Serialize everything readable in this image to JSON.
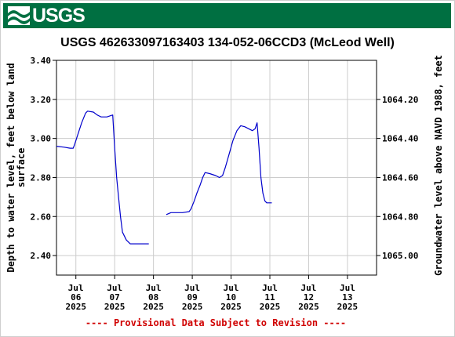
{
  "header": {
    "logo_text": "USGS",
    "logo_icon": "usgs-wave-icon",
    "banner_color": "#006f41"
  },
  "chart_data": {
    "type": "line",
    "title": "USGS 462633097163403 134-052-06CCD3 (McLeod Well)",
    "ylabel_left": "Depth to water level, feet below land surface",
    "ylabel_left_lines": [
      "Depth to water level, feet below land",
      "surface"
    ],
    "ylabel_right": "Groundwater level above NAVD 1988, feet",
    "footnote": "---- Provisional Data Subject to Revision ----",
    "line_color": "#0000cc",
    "footnote_color": "#d00000",
    "grid": true,
    "ylim_left": [
      3.4,
      2.3
    ],
    "ylim_left_inverted": true,
    "right_axis_offset": 1067.4,
    "xlim_days": [
      5.5,
      13.75
    ],
    "x_tick_days": [
      6,
      7,
      8,
      9,
      10,
      11,
      12,
      13
    ],
    "x_tick_labels": [
      [
        "Jul",
        "06",
        "2025"
      ],
      [
        "Jul",
        "07",
        "2025"
      ],
      [
        "Jul",
        "08",
        "2025"
      ],
      [
        "Jul",
        "09",
        "2025"
      ],
      [
        "Jul",
        "10",
        "2025"
      ],
      [
        "Jul",
        "11",
        "2025"
      ],
      [
        "Jul",
        "12",
        "2025"
      ],
      [
        "Jul",
        "13",
        "2025"
      ]
    ],
    "y_ticks_left": [
      {
        "value": 2.4,
        "label": "2.40"
      },
      {
        "value": 2.6,
        "label": "2.60"
      },
      {
        "value": 2.8,
        "label": "2.80"
      },
      {
        "value": 3.0,
        "label": "3.00"
      },
      {
        "value": 3.2,
        "label": "3.20"
      },
      {
        "value": 3.4,
        "label": "3.40"
      }
    ],
    "y_ticks_right": [
      {
        "value": 1065.0,
        "label": "1065.00"
      },
      {
        "value": 1064.8,
        "label": "1064.80"
      },
      {
        "value": 1064.6,
        "label": "1064.60"
      },
      {
        "value": 1064.4,
        "label": "1064.40"
      },
      {
        "value": 1064.2,
        "label": "1064.20"
      }
    ],
    "series": [
      {
        "segments": [
          [
            [
              5.5,
              2.96
            ],
            [
              5.7,
              2.955
            ],
            [
              5.85,
              2.95
            ],
            [
              5.93,
              2.95
            ],
            [
              5.97,
              2.97
            ],
            [
              6.05,
              3.02
            ],
            [
              6.15,
              3.08
            ],
            [
              6.25,
              3.13
            ],
            [
              6.3,
              3.14
            ],
            [
              6.45,
              3.135
            ],
            [
              6.55,
              3.12
            ],
            [
              6.65,
              3.11
            ],
            [
              6.8,
              3.11
            ],
            [
              6.95,
              3.12
            ],
            [
              7.0,
              2.95
            ],
            [
              7.05,
              2.8
            ],
            [
              7.1,
              2.7
            ],
            [
              7.15,
              2.6
            ],
            [
              7.2,
              2.52
            ],
            [
              7.3,
              2.48
            ],
            [
              7.4,
              2.46
            ],
            [
              7.6,
              2.46
            ],
            [
              7.75,
              2.46
            ],
            [
              7.88,
              2.46
            ]
          ],
          [
            [
              8.33,
              2.61
            ],
            [
              8.45,
              2.62
            ],
            [
              8.6,
              2.62
            ],
            [
              8.75,
              2.62
            ],
            [
              8.92,
              2.625
            ],
            [
              8.97,
              2.64
            ],
            [
              9.05,
              2.68
            ],
            [
              9.12,
              2.72
            ],
            [
              9.2,
              2.76
            ],
            [
              9.27,
              2.8
            ],
            [
              9.33,
              2.825
            ],
            [
              9.45,
              2.82
            ],
            [
              9.6,
              2.81
            ],
            [
              9.7,
              2.8
            ],
            [
              9.78,
              2.81
            ],
            [
              9.85,
              2.85
            ],
            [
              9.95,
              2.92
            ],
            [
              10.05,
              2.99
            ],
            [
              10.15,
              3.04
            ],
            [
              10.25,
              3.065
            ],
            [
              10.35,
              3.06
            ],
            [
              10.45,
              3.05
            ],
            [
              10.55,
              3.04
            ],
            [
              10.62,
              3.05
            ],
            [
              10.67,
              3.08
            ],
            [
              10.72,
              2.95
            ],
            [
              10.77,
              2.8
            ],
            [
              10.82,
              2.72
            ],
            [
              10.87,
              2.68
            ],
            [
              10.92,
              2.67
            ],
            [
              11.05,
              2.67
            ]
          ]
        ]
      }
    ]
  }
}
